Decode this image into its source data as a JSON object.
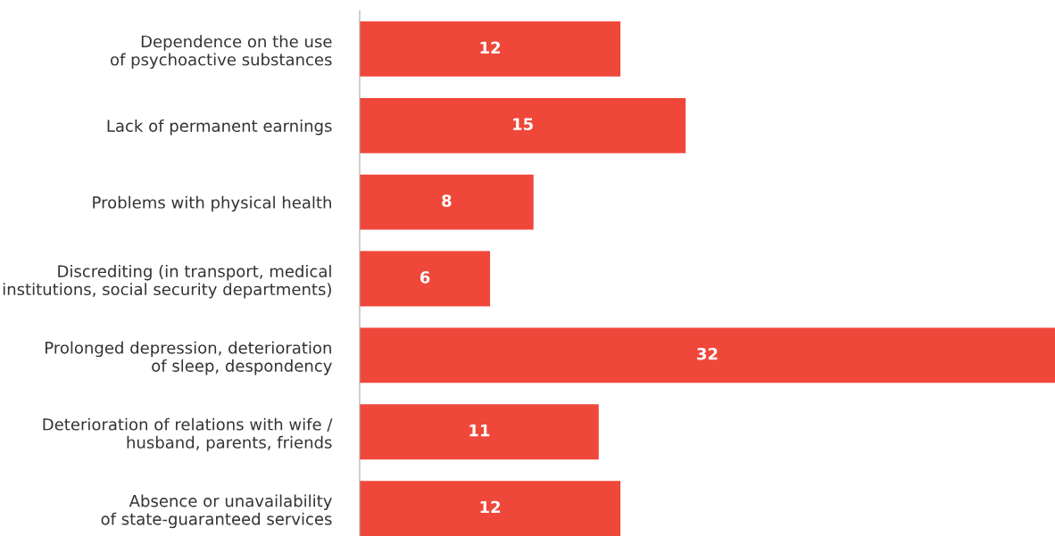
{
  "chart_data": {
    "type": "bar",
    "orientation": "horizontal",
    "categories": [
      "Dependence on the use\nof psychoactive substances",
      "Lack of permanent earnings",
      "Problems with physical health",
      "Discrediting (in transport, medical\ninstitutions, social security departments)",
      "Prolonged depression, deterioration\nof sleep, despondency",
      "Deterioration of relations with wife /\nhusband, parents, friends",
      "Absence or unavailability\nof state-guaranteed services"
    ],
    "values": [
      12,
      15,
      8,
      6,
      32,
      11,
      12
    ],
    "color": "#ef473a",
    "data_labels": true
  }
}
